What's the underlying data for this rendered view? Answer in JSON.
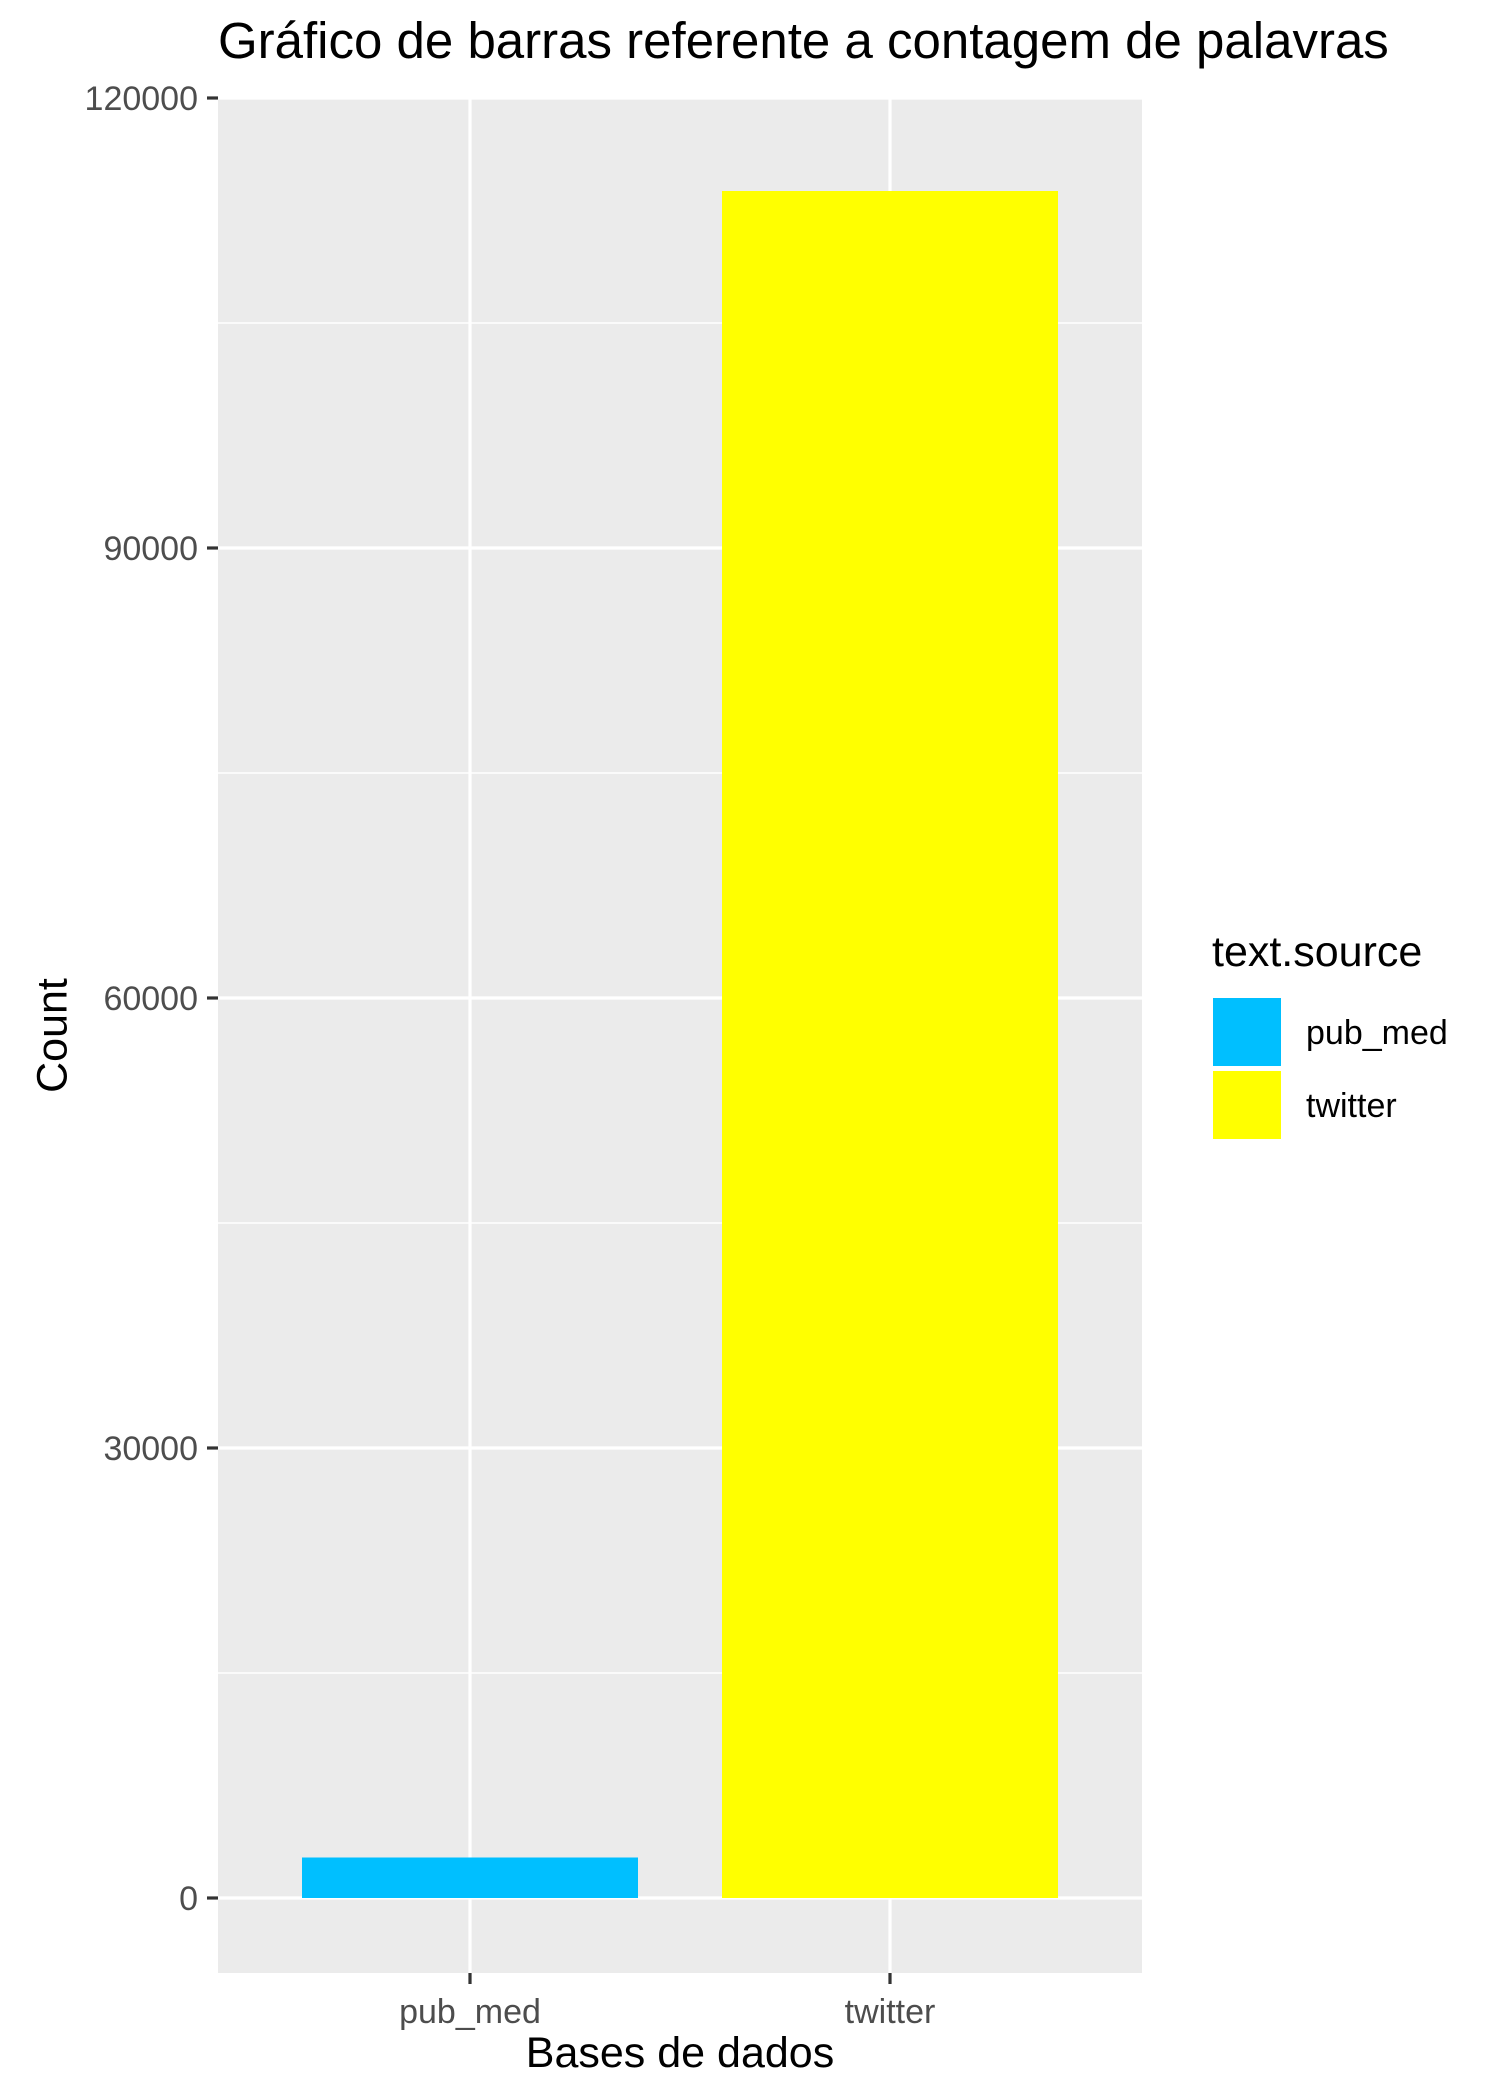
{
  "chart_data": {
    "type": "bar",
    "title": "Gráfico de barras referente a contagem de palavras",
    "xlabel": "Bases de dados",
    "ylabel": "Count",
    "categories": [
      "pub_med",
      "twitter"
    ],
    "values": [
      2700,
      113800
    ],
    "bar_colors": [
      "#00BFFF",
      "#FFFF00"
    ],
    "ylim": [
      -5000,
      120000
    ],
    "yticks": [
      0,
      30000,
      60000,
      90000,
      120000
    ],
    "ytick_labels": [
      "0",
      "30000",
      "60000",
      "90000",
      "120000"
    ],
    "minor_yticks": [
      15000,
      45000,
      75000,
      105000
    ],
    "panel_background": "#EBEBEB",
    "grid": true,
    "legend": {
      "title": "text.source",
      "position": "right",
      "entries": [
        {
          "label": "pub_med",
          "color": "#00BFFF"
        },
        {
          "label": "twitter",
          "color": "#FFFF00"
        }
      ]
    }
  }
}
